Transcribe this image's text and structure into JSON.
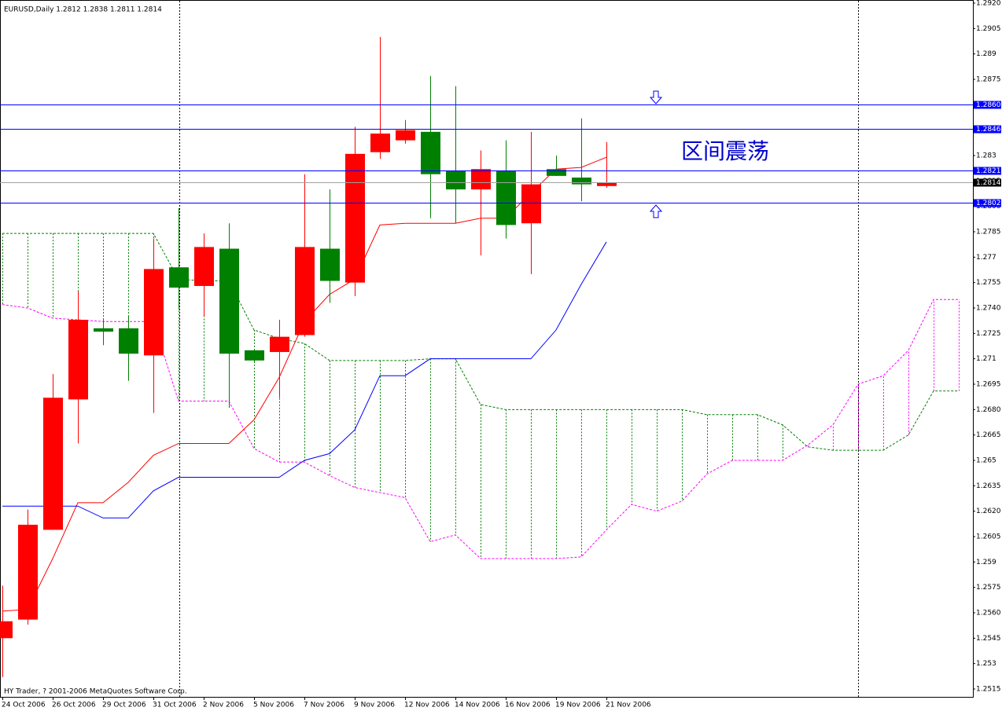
{
  "chart_data": {
    "type": "candlestick",
    "title": "EURUSD,Daily  1.2812 1.2838 1.2811 1.2814",
    "footer": "HY Trader, ? 2001-2006 MetaQuotes Software Corp.",
    "annotation": "区间震荡",
    "categories": [
      "24 Oct 2006",
      null,
      "26 Oct 2006",
      null,
      "29 Oct 2006",
      null,
      "31 Oct 2006",
      null,
      "2 Nov 2006",
      null,
      "5 Nov 2006",
      null,
      "7 Nov 2006",
      null,
      "9 Nov 2006",
      null,
      "12 Nov 2006",
      null,
      "14 Nov 2006",
      null,
      "16 Nov 2006",
      null,
      "19 Nov 2006",
      null,
      "21 Nov 2006",
      null,
      null,
      null,
      null,
      null,
      null,
      null,
      null,
      null,
      null,
      null,
      null,
      null,
      null
    ],
    "open": [
      1.2545,
      1.2556,
      1.2609,
      1.2686,
      1.2728,
      1.2728,
      1.2712,
      1.2764,
      1.2753,
      1.2775,
      1.2715,
      1.2714,
      1.2724,
      1.2775,
      1.2755,
      1.2832,
      1.2839,
      1.2844,
      1.2821,
      1.281,
      1.2821,
      1.279,
      1.2822,
      1.2817,
      1.2812,
      null,
      null,
      null,
      null,
      null,
      null,
      null,
      null,
      null,
      null,
      null,
      null,
      null,
      null
    ],
    "high": [
      1.2576,
      1.2621,
      1.2701,
      1.275,
      1.2733,
      1.2735,
      1.2781,
      1.2799,
      1.2784,
      1.279,
      1.2715,
      1.2733,
      1.2819,
      1.281,
      1.2847,
      1.29,
      1.2851,
      1.2877,
      1.2871,
      1.2833,
      1.2839,
      1.2844,
      1.283,
      1.2852,
      1.2838,
      null,
      null,
      null,
      null,
      null,
      null,
      null,
      null,
      null,
      null,
      null,
      null,
      null,
      null
    ],
    "low": [
      1.2522,
      1.2553,
      1.2609,
      1.266,
      1.2718,
      1.2697,
      1.2678,
      1.2739,
      1.2735,
      1.2681,
      1.2708,
      1.2687,
      1.2723,
      1.2743,
      1.2747,
      1.2828,
      1.2837,
      1.2793,
      1.279,
      1.2771,
      1.2781,
      1.276,
      1.2818,
      1.2803,
      1.2811,
      null,
      null,
      null,
      null,
      null,
      null,
      null,
      null,
      null,
      null,
      null,
      null,
      null,
      null
    ],
    "close": [
      1.2555,
      1.2612,
      1.2687,
      1.2733,
      1.2726,
      1.2713,
      1.2763,
      1.2752,
      1.2776,
      1.2713,
      1.2709,
      1.2723,
      1.2776,
      1.2756,
      1.2831,
      1.2843,
      1.2845,
      1.2819,
      1.281,
      1.2822,
      1.2789,
      1.2813,
      1.2818,
      1.2813,
      1.2814,
      null,
      null,
      null,
      null,
      null,
      null,
      null,
      null,
      null,
      null,
      null,
      null,
      null,
      null
    ],
    "up_color": "#ff0000",
    "down_color": "#008000",
    "lines": [
      {
        "color": "#ff0000",
        "values": [
          1.2561,
          1.2562,
          1.2592,
          1.2625,
          1.2625,
          1.2637,
          1.2653,
          1.266,
          1.266,
          1.266,
          1.2674,
          1.2699,
          1.2732,
          1.2748,
          1.2757,
          1.2789,
          1.279,
          1.279,
          1.279,
          1.2793,
          1.2793,
          1.2808,
          1.2822,
          1.2823,
          1.2829,
          null,
          null,
          null,
          null,
          null,
          null,
          null,
          null,
          null,
          null,
          null,
          null,
          null,
          null
        ]
      },
      {
        "color": "#0000ff",
        "values": [
          1.2623,
          1.2623,
          1.2623,
          1.2623,
          1.2616,
          1.2616,
          1.2632,
          1.264,
          1.264,
          1.264,
          1.264,
          1.264,
          1.265,
          1.2654,
          1.2668,
          1.27,
          1.27,
          1.271,
          1.271,
          1.271,
          1.271,
          1.271,
          1.2727,
          1.2754,
          1.2779,
          null,
          null,
          null,
          null,
          null,
          null,
          null,
          null,
          null,
          null,
          null,
          null,
          null,
          null
        ]
      }
    ],
    "cloud": {
      "span_a": {
        "color": "#008000",
        "values": [
          1.2784,
          1.2784,
          1.2784,
          1.2784,
          1.2784,
          1.2784,
          1.2784,
          1.2757,
          1.2756,
          1.2756,
          1.2727,
          1.2722,
          1.2719,
          1.2709,
          1.2709,
          1.2709,
          1.2709,
          1.271,
          1.271,
          1.2683,
          1.268,
          1.268,
          1.268,
          1.268,
          1.268,
          1.268,
          1.268,
          1.268,
          1.2677,
          1.2677,
          1.2677,
          1.2671,
          1.2658,
          1.2656,
          1.2656,
          1.2656,
          1.2665,
          1.2691,
          1.2691
        ]
      },
      "span_b": {
        "color": "#ff00ff",
        "values": [
          1.2742,
          1.274,
          1.2734,
          1.2733,
          1.2732,
          1.2732,
          1.2732,
          1.2685,
          1.2685,
          1.2685,
          1.2657,
          1.2649,
          1.2649,
          1.2641,
          1.2634,
          1.2631,
          1.2628,
          1.2602,
          1.2606,
          1.2592,
          1.2592,
          1.2592,
          1.2592,
          1.2593,
          1.2609,
          1.2624,
          1.262,
          1.2626,
          1.2642,
          1.265,
          1.265,
          1.265,
          1.2659,
          1.2671,
          1.2695,
          1.27,
          1.2715,
          1.2745,
          1.2745
        ]
      }
    },
    "levels": {
      "color": "#0000ff",
      "values": [
        {
          "value": 1.286,
          "label": "1.2860"
        },
        1.2846,
        1.2821,
        1.2802
      ]
    },
    "current_price": 1.2814,
    "ylim": [
      1.2515,
      1.292
    ],
    "yticks": [
      {
        "value": 1.292,
        "label": "1.2920"
      },
      1.2905,
      1.289,
      1.2875,
      {
        "value": 1.286,
        "label": "1.2860"
      },
      1.2845,
      1.283,
      1.2815,
      {
        "value": 1.28,
        "label": "1.2800"
      },
      1.2785,
      1.277,
      1.2755,
      {
        "value": 1.274,
        "label": "1.2740"
      },
      1.2725,
      1.271,
      1.2695,
      {
        "value": 1.268,
        "label": "1.2680"
      },
      1.2665,
      1.265,
      1.2635,
      {
        "value": 1.262,
        "label": "1.2620"
      },
      1.2605,
      1.259,
      1.2575,
      {
        "value": 1.256,
        "label": "1.2560"
      },
      1.2545,
      1.253,
      1.2515
    ]
  }
}
